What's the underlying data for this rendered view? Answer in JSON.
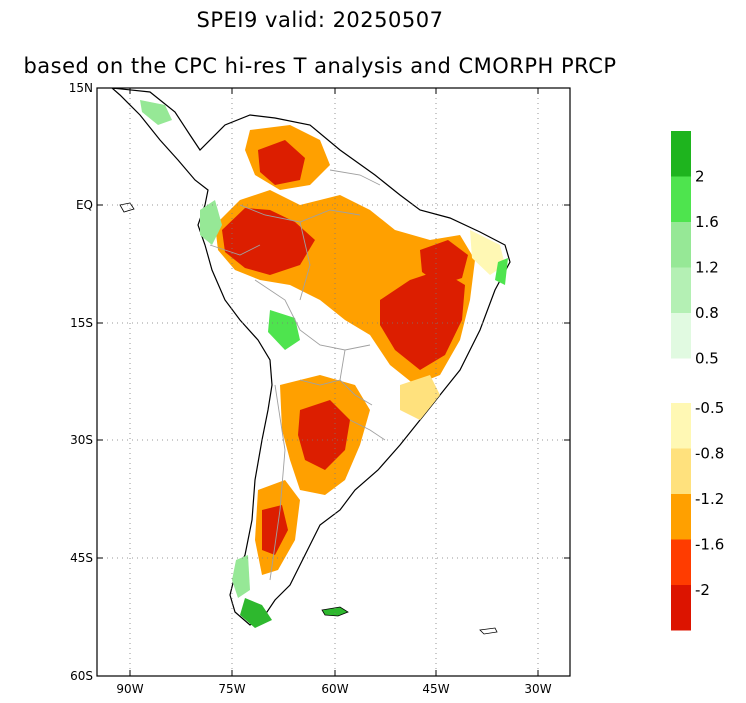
{
  "title": "SPEI9   valid: 20250507",
  "subtitle": "based on the CPC hi-res T analysis and CMORPH PRCP",
  "lat_labels": [
    "15N",
    "EQ",
    "15S",
    "30S",
    "45S",
    "60S"
  ],
  "lon_labels": [
    "90W",
    "75W",
    "60W",
    "45W",
    "30W"
  ],
  "colorbar_positive": {
    "colors": [
      "#1eb41e",
      "#4ee44e",
      "#96e896",
      "#b4f0b4",
      "#e1fae1"
    ],
    "labels": [
      "2",
      "1.6",
      "1.2",
      "0.8",
      "0.5"
    ]
  },
  "colorbar_negative": {
    "colors": [
      "#fff8b4",
      "#ffe17d",
      "#ffa000",
      "#ff3c00",
      "#dc1400"
    ],
    "labels": [
      "-0.5",
      "-0.8",
      "-1.2",
      "-1.6",
      "-2"
    ]
  },
  "colors": {
    "land": "#ffffff",
    "dry_severe": "#dc1e00",
    "dry_moderate": "#ffa000",
    "dry_light": "#ffe17d",
    "dry_minimal": "#fff8b4",
    "wet_light": "#96e896",
    "wet_strong": "#2eb82e",
    "coast": "#000000",
    "border": "#a0a0a0"
  }
}
